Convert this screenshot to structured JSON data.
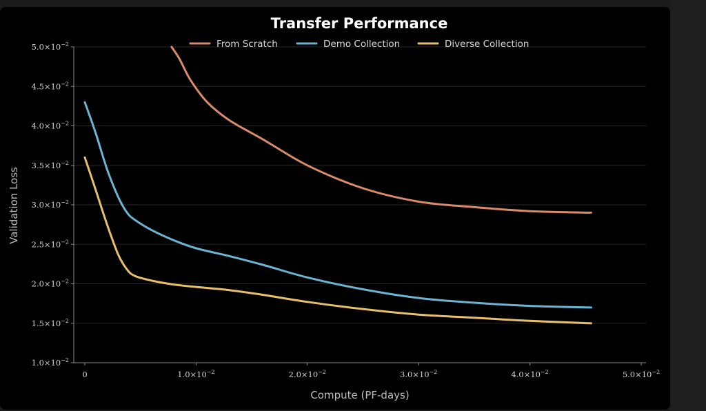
{
  "chart_data": {
    "type": "line",
    "title": "Transfer Performance",
    "xlabel": "Compute (PF-days)",
    "ylabel": "Validation Loss",
    "xlim": [
      -0.001,
      0.05
    ],
    "ylim": [
      0.01,
      0.05
    ],
    "x_ticks": [
      {
        "value": 0,
        "mant": "0",
        "exp": ""
      },
      {
        "value": 0.01,
        "mant": "1.0",
        "exp": "−2"
      },
      {
        "value": 0.02,
        "mant": "2.0",
        "exp": "−2"
      },
      {
        "value": 0.03,
        "mant": "3.0",
        "exp": "−2"
      },
      {
        "value": 0.04,
        "mant": "4.0",
        "exp": "−2"
      },
      {
        "value": 0.05,
        "mant": "5.0",
        "exp": "−2"
      }
    ],
    "y_ticks": [
      {
        "value": 0.01,
        "mant": "1.0",
        "exp": "−2"
      },
      {
        "value": 0.015,
        "mant": "1.5",
        "exp": "−2"
      },
      {
        "value": 0.02,
        "mant": "2.0",
        "exp": "−2"
      },
      {
        "value": 0.025,
        "mant": "2.5",
        "exp": "−2"
      },
      {
        "value": 0.03,
        "mant": "3.0",
        "exp": "−2"
      },
      {
        "value": 0.035,
        "mant": "3.5",
        "exp": "−2"
      },
      {
        "value": 0.04,
        "mant": "4.0",
        "exp": "−2"
      },
      {
        "value": 0.045,
        "mant": "4.5",
        "exp": "−2"
      },
      {
        "value": 0.05,
        "mant": "5.0",
        "exp": "−2"
      }
    ],
    "grid": "horizontal",
    "legend_position": "top",
    "series": [
      {
        "name": "From Scratch",
        "color": "#d98b6a",
        "points": [
          [
            0.0078,
            0.05
          ],
          [
            0.0085,
            0.0485
          ],
          [
            0.0095,
            0.0458
          ],
          [
            0.011,
            0.043
          ],
          [
            0.013,
            0.0407
          ],
          [
            0.016,
            0.0383
          ],
          [
            0.02,
            0.035
          ],
          [
            0.025,
            0.0321
          ],
          [
            0.03,
            0.0304
          ],
          [
            0.035,
            0.0297
          ],
          [
            0.04,
            0.0292
          ],
          [
            0.0455,
            0.029
          ]
        ]
      },
      {
        "name": "Demo Collection",
        "color": "#6cb6d4",
        "points": [
          [
            0,
            0.043
          ],
          [
            0.001,
            0.039
          ],
          [
            0.002,
            0.0345
          ],
          [
            0.003,
            0.031
          ],
          [
            0.0038,
            0.029
          ],
          [
            0.0045,
            0.0281
          ],
          [
            0.006,
            0.0268
          ],
          [
            0.008,
            0.0255
          ],
          [
            0.01,
            0.0245
          ],
          [
            0.013,
            0.0235
          ],
          [
            0.016,
            0.0224
          ],
          [
            0.02,
            0.0208
          ],
          [
            0.025,
            0.0193
          ],
          [
            0.03,
            0.0182
          ],
          [
            0.035,
            0.0176
          ],
          [
            0.04,
            0.0172
          ],
          [
            0.0455,
            0.017
          ]
        ]
      },
      {
        "name": "Diverse Collection",
        "color": "#e8c06a",
        "points": [
          [
            0,
            0.036
          ],
          [
            0.001,
            0.0318
          ],
          [
            0.002,
            0.0275
          ],
          [
            0.003,
            0.0237
          ],
          [
            0.0038,
            0.0218
          ],
          [
            0.0045,
            0.021
          ],
          [
            0.006,
            0.0204
          ],
          [
            0.008,
            0.0199
          ],
          [
            0.01,
            0.0196
          ],
          [
            0.013,
            0.0192
          ],
          [
            0.016,
            0.0186
          ],
          [
            0.02,
            0.0177
          ],
          [
            0.025,
            0.0168
          ],
          [
            0.03,
            0.0161
          ],
          [
            0.035,
            0.0157
          ],
          [
            0.04,
            0.0153
          ],
          [
            0.0455,
            0.015
          ]
        ]
      }
    ]
  }
}
